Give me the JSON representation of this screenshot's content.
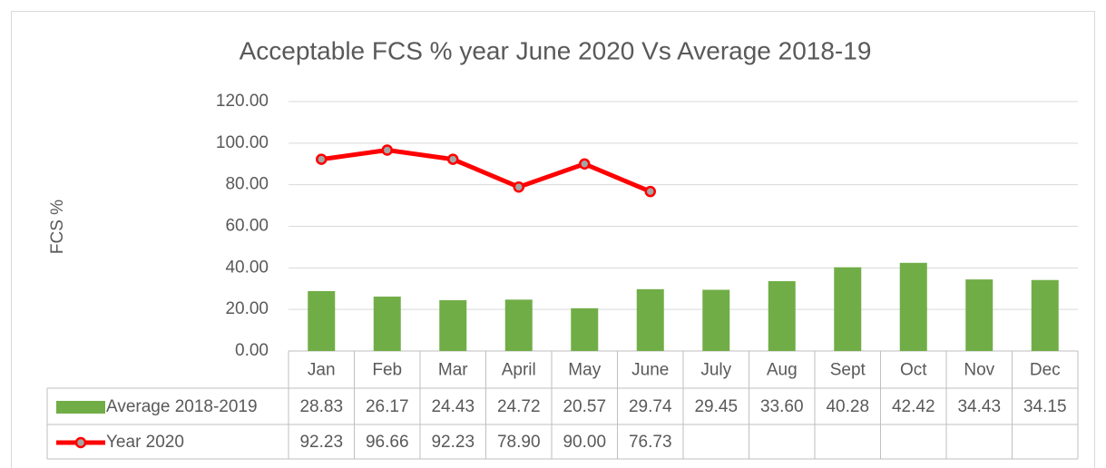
{
  "chart_data": {
    "type": "bar_line",
    "title": "Acceptable FCS % year  June 2020 Vs Average 2018-19",
    "y_label": "FCS %",
    "categories": [
      "Jan",
      "Feb",
      "Mar",
      "April",
      "May",
      "June",
      "July",
      "Aug",
      "Sept",
      "Oct",
      "Nov",
      "Dec"
    ],
    "series": [
      {
        "name": "Average 2018-2019",
        "type": "bar",
        "color": "#70ad47",
        "values": [
          28.83,
          26.17,
          24.43,
          24.72,
          20.57,
          29.74,
          29.45,
          33.6,
          40.28,
          42.42,
          34.43,
          34.15
        ],
        "value_labels": [
          "28.83",
          "26.17",
          "24.43",
          "24.72",
          "20.57",
          "29.74",
          "29.45",
          "33.60",
          "40.28",
          "42.42",
          "34.43",
          "34.15"
        ]
      },
      {
        "name": "Year 2020",
        "type": "line",
        "color": "#ff0000",
        "values": [
          92.23,
          96.66,
          92.23,
          78.9,
          90,
          76.73,
          null,
          null,
          null,
          null,
          null,
          null
        ],
        "value_labels": [
          "92.23",
          "96.66",
          "92.23",
          "78.90",
          "90.00",
          "76.73",
          null,
          null,
          null,
          null,
          null,
          null
        ]
      }
    ],
    "ylim": [
      0,
      120
    ],
    "yticks": [
      {
        "value": 0,
        "label": "0.00"
      },
      {
        "value": 20,
        "label": "20.00"
      },
      {
        "value": 40,
        "label": "40.00"
      },
      {
        "value": 60,
        "label": "60.00"
      },
      {
        "value": 80,
        "label": "80.00"
      },
      {
        "value": 100,
        "label": "100.00"
      },
      {
        "value": 120,
        "label": "120.00"
      }
    ],
    "grid": true
  }
}
